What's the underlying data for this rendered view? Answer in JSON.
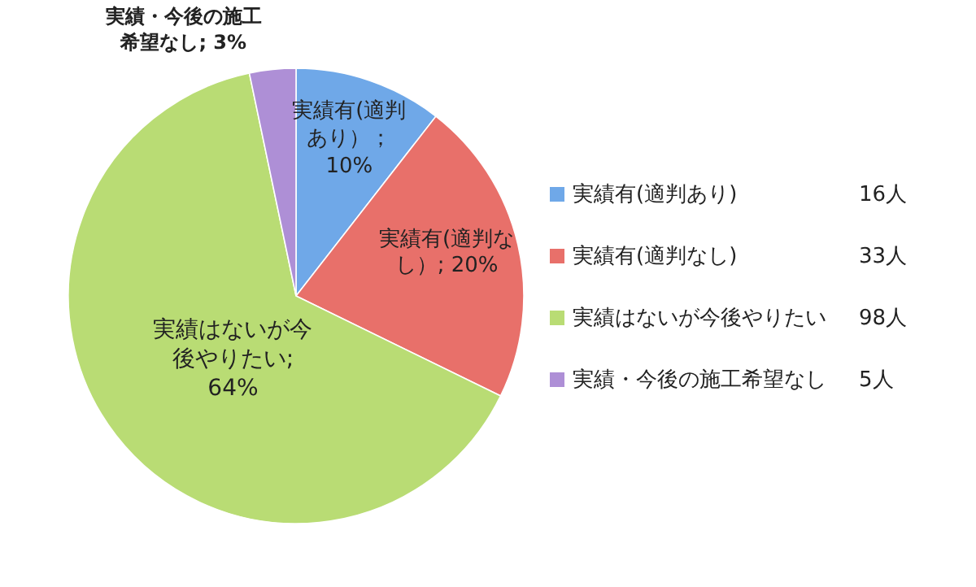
{
  "chart_data": {
    "type": "pie",
    "categories": [
      "実績有(適判あり)",
      "実績有(適判なし)",
      "実績はないが今後やりたい",
      "実績・今後の施工希望なし"
    ],
    "values": [
      16,
      33,
      98,
      5
    ],
    "value_labels": [
      "16人",
      "33人",
      "98人",
      "5人"
    ],
    "colors": [
      "#6fa8e8",
      "#e8706a",
      "#b9dc74",
      "#ae8fd6"
    ],
    "annotations": [
      "実績有(適判あり）；10%",
      "実績有(適判なし）; 20%",
      "実績はないが今後やりたい; 64%",
      "実績・今後の施工希望なし; 3%"
    ],
    "legend": "right"
  }
}
